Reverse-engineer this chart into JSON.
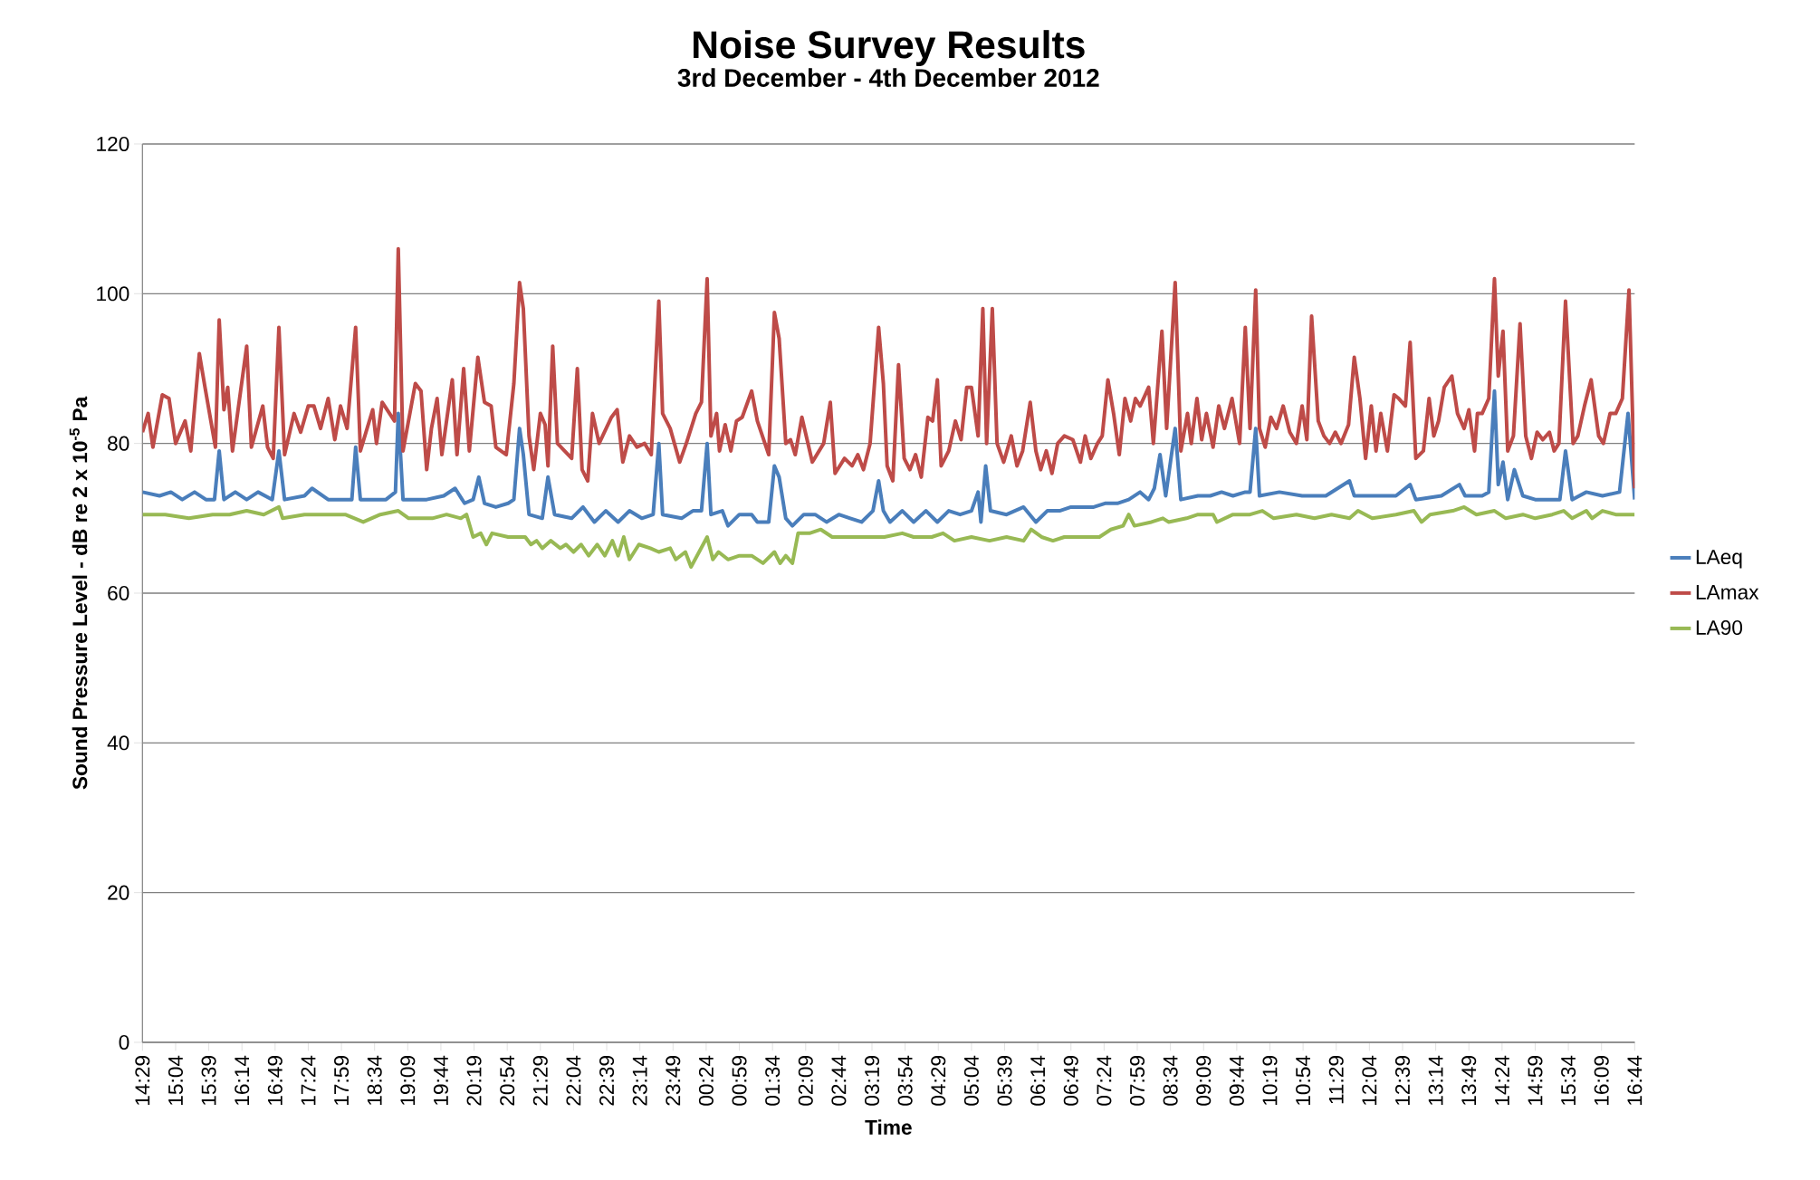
{
  "chart_data": {
    "type": "line",
    "title": "Noise Survey Results",
    "subtitle": "3rd December - 4th December 2012",
    "xlabel": "Time",
    "ylabel": "Sound Pressure Level - dB re 2 x 10$^{-5}$ Pa",
    "ylim": [
      0,
      120
    ],
    "yticks": [
      0,
      20,
      40,
      60,
      80,
      100,
      120
    ],
    "grid": "y",
    "legend": "right",
    "marker": "none",
    "line_style": "solid",
    "xlim": [
      "2012-12-03T14:29",
      "2012-12-04T16:44"
    ],
    "xticks": [
      {
        "value": "2012-12-03T14:29",
        "label": "14:29"
      },
      {
        "value": "2012-12-03T15:04",
        "label": "15:04"
      },
      {
        "value": "2012-12-03T15:39",
        "label": "15:39"
      },
      {
        "value": "2012-12-03T16:14",
        "label": "16:14"
      },
      {
        "value": "2012-12-03T16:49",
        "label": "16:49"
      },
      {
        "value": "2012-12-03T17:24",
        "label": "17:24"
      },
      {
        "value": "2012-12-03T17:59",
        "label": "17:59"
      },
      {
        "value": "2012-12-03T18:34",
        "label": "18:34"
      },
      {
        "value": "2012-12-03T19:09",
        "label": "19:09"
      },
      {
        "value": "2012-12-03T19:44",
        "label": "19:44"
      },
      {
        "value": "2012-12-03T20:19",
        "label": "20:19"
      },
      {
        "value": "2012-12-03T20:54",
        "label": "20:54"
      },
      {
        "value": "2012-12-03T21:29",
        "label": "21:29"
      },
      {
        "value": "2012-12-03T22:04",
        "label": "22:04"
      },
      {
        "value": "2012-12-03T22:39",
        "label": "22:39"
      },
      {
        "value": "2012-12-03T23:14",
        "label": "23:14"
      },
      {
        "value": "2012-12-03T23:49",
        "label": "23:49"
      },
      {
        "value": "2012-12-04T00:24",
        "label": "00:24"
      },
      {
        "value": "2012-12-04T00:59",
        "label": "00:59"
      },
      {
        "value": "2012-12-04T01:34",
        "label": "01:34"
      },
      {
        "value": "2012-12-04T02:09",
        "label": "02:09"
      },
      {
        "value": "2012-12-04T02:44",
        "label": "02:44"
      },
      {
        "value": "2012-12-04T03:19",
        "label": "03:19"
      },
      {
        "value": "2012-12-04T03:54",
        "label": "03:54"
      },
      {
        "value": "2012-12-04T04:29",
        "label": "04:29"
      },
      {
        "value": "2012-12-04T05:04",
        "label": "05:04"
      },
      {
        "value": "2012-12-04T05:39",
        "label": "05:39"
      },
      {
        "value": "2012-12-04T06:14",
        "label": "06:14"
      },
      {
        "value": "2012-12-04T06:49",
        "label": "06:49"
      },
      {
        "value": "2012-12-04T07:24",
        "label": "07:24"
      },
      {
        "value": "2012-12-04T07:59",
        "label": "07:59"
      },
      {
        "value": "2012-12-04T08:34",
        "label": "08:34"
      },
      {
        "value": "2012-12-04T09:09",
        "label": "09:09"
      },
      {
        "value": "2012-12-04T09:44",
        "label": "09:44"
      },
      {
        "value": "2012-12-04T10:19",
        "label": "10:19"
      },
      {
        "value": "2012-12-04T10:54",
        "label": "10:54"
      },
      {
        "value": "2012-12-04T11:29",
        "label": "11:29"
      },
      {
        "value": "2012-12-04T12:04",
        "label": "12:04"
      },
      {
        "value": "2012-12-04T12:39",
        "label": "12:39"
      },
      {
        "value": "2012-12-04T13:14",
        "label": "13:14"
      },
      {
        "value": "2012-12-04T13:49",
        "label": "13:49"
      },
      {
        "value": "2012-12-04T14:24",
        "label": "14:24"
      },
      {
        "value": "2012-12-04T14:59",
        "label": "14:59"
      },
      {
        "value": "2012-12-04T15:34",
        "label": "15:34"
      },
      {
        "value": "2012-12-04T16:09",
        "label": "16:09"
      },
      {
        "value": "2012-12-04T16:44",
        "label": "16:44"
      }
    ],
    "series": [
      {
        "name": "LAeq",
        "color": "#4a7ebb",
        "x": [
          "2012-12-03T14:29",
          "2012-12-03T14:47",
          "2012-12-03T14:59",
          "2012-12-03T15:11",
          "2012-12-03T15:24",
          "2012-12-03T15:36",
          "2012-12-03T15:45",
          "2012-12-03T15:50",
          "2012-12-03T15:55",
          "2012-12-03T16:07",
          "2012-12-03T16:19",
          "2012-12-03T16:31",
          "2012-12-03T16:46",
          "2012-12-03T16:53",
          "2012-12-03T16:59",
          "2012-12-03T17:20",
          "2012-12-03T17:28",
          "2012-12-03T17:45",
          "2012-12-03T18:03",
          "2012-12-03T18:10",
          "2012-12-03T18:14",
          "2012-12-03T18:19",
          "2012-12-03T18:46",
          "2012-12-03T18:56",
          "2012-12-03T18:59",
          "2012-12-03T19:04",
          "2012-12-03T19:29",
          "2012-12-03T19:47",
          "2012-12-03T19:59",
          "2012-12-03T20:09",
          "2012-12-03T20:18",
          "2012-12-03T20:24",
          "2012-12-03T20:30",
          "2012-12-03T20:42",
          "2012-12-03T20:55",
          "2012-12-03T21:01",
          "2012-12-03T21:07",
          "2012-12-03T21:11",
          "2012-12-03T21:17",
          "2012-12-03T21:31",
          "2012-12-03T21:37",
          "2012-12-03T21:44",
          "2012-12-03T22:02",
          "2012-12-03T22:14",
          "2012-12-03T22:26",
          "2012-12-03T22:38",
          "2012-12-03T22:51",
          "2012-12-03T23:03",
          "2012-12-03T23:16",
          "2012-12-03T23:28",
          "2012-12-03T23:34",
          "2012-12-03T23:38",
          "2012-12-03T23:58",
          "2012-12-04T00:10",
          "2012-12-04T00:19",
          "2012-12-04T00:25",
          "2012-12-04T00:29",
          "2012-12-04T00:41",
          "2012-12-04T00:47",
          "2012-12-04T00:59",
          "2012-12-04T01:12",
          "2012-12-04T01:18",
          "2012-12-04T01:30",
          "2012-12-04T01:36",
          "2012-12-04T01:41",
          "2012-12-04T01:48",
          "2012-12-04T01:55",
          "2012-12-04T02:07",
          "2012-12-04T02:19",
          "2012-12-04T02:31",
          "2012-12-04T02:44",
          "2012-12-04T02:56",
          "2012-12-04T03:08",
          "2012-12-04T03:20",
          "2012-12-04T03:26",
          "2012-12-04T03:31",
          "2012-12-04T03:38",
          "2012-12-04T03:51",
          "2012-12-04T04:03",
          "2012-12-04T04:16",
          "2012-12-04T04:28",
          "2012-12-04T04:40",
          "2012-12-04T04:52",
          "2012-12-04T05:04",
          "2012-12-04T05:11",
          "2012-12-04T05:14",
          "2012-12-04T05:19",
          "2012-12-04T05:24",
          "2012-12-04T05:41",
          "2012-12-04T05:59",
          "2012-12-04T06:12",
          "2012-12-04T06:24",
          "2012-12-04T06:37",
          "2012-12-04T06:49",
          "2012-12-04T07:01",
          "2012-12-04T07:13",
          "2012-12-04T07:25",
          "2012-12-04T07:38",
          "2012-12-04T07:50",
          "2012-12-04T08:02",
          "2012-12-04T08:11",
          "2012-12-04T08:17",
          "2012-12-04T08:23",
          "2012-12-04T08:29",
          "2012-12-04T08:39",
          "2012-12-04T08:45",
          "2012-12-04T09:03",
          "2012-12-04T09:16",
          "2012-12-04T09:28",
          "2012-12-04T09:40",
          "2012-12-04T09:53",
          "2012-12-04T09:58",
          "2012-12-04T10:04",
          "2012-12-04T10:08",
          "2012-12-04T10:29",
          "2012-12-04T10:53",
          "2012-12-04T11:18",
          "2012-12-04T11:43",
          "2012-12-04T11:48",
          "2012-12-04T12:07",
          "2012-12-04T12:32",
          "2012-12-04T12:47",
          "2012-12-04T12:53",
          "2012-12-04T13:20",
          "2012-12-04T13:39",
          "2012-12-04T13:45",
          "2012-12-04T14:03",
          "2012-12-04T14:10",
          "2012-12-04T14:16",
          "2012-12-04T14:20",
          "2012-12-04T14:25",
          "2012-12-04T14:30",
          "2012-12-04T14:37",
          "2012-12-04T14:46",
          "2012-12-04T14:59",
          "2012-12-04T15:17",
          "2012-12-04T15:25",
          "2012-12-04T15:31",
          "2012-12-04T15:38",
          "2012-12-04T15:53",
          "2012-12-04T16:10",
          "2012-12-04T16:28",
          "2012-12-04T16:37",
          "2012-12-04T16:44"
        ],
        "values": [
          73.5,
          73,
          73.5,
          72.5,
          73.5,
          72.5,
          72.5,
          79,
          72.5,
          73.5,
          72.5,
          73.5,
          72.5,
          79,
          72.5,
          73,
          74,
          72.5,
          72.5,
          72.5,
          79.5,
          72.5,
          72.5,
          73.5,
          84,
          72.5,
          72.5,
          73,
          74,
          72,
          72.5,
          75.5,
          72,
          71.5,
          72,
          72.5,
          82,
          78.5,
          70.5,
          70,
          75.5,
          70.5,
          70,
          71.5,
          69.5,
          71,
          69.5,
          71,
          70,
          70.5,
          80,
          70.5,
          70,
          71,
          71,
          80,
          70.5,
          71,
          69,
          70.5,
          70.5,
          69.5,
          69.5,
          77,
          75.5,
          70,
          69,
          70.5,
          70.5,
          69.5,
          70.5,
          70,
          69.5,
          71,
          75,
          71,
          69.5,
          71,
          69.5,
          71,
          69.5,
          71,
          70.5,
          71,
          73.5,
          69.5,
          77,
          71,
          70.5,
          71.5,
          69.5,
          71,
          71,
          71.5,
          71.5,
          71.5,
          72,
          72,
          72.5,
          73.5,
          72.5,
          74,
          78.5,
          73,
          82,
          72.5,
          73,
          73,
          73.5,
          73,
          73.5,
          73.5,
          82,
          73,
          73.5,
          73,
          73,
          75,
          73,
          73,
          73,
          74.5,
          72.5,
          73,
          74.5,
          73,
          73,
          73.5,
          87,
          74.5,
          77.5,
          72.5,
          76.5,
          73,
          72.5,
          72.5,
          72.5,
          79,
          72.5,
          73.5,
          73,
          73.5,
          84,
          72.5
        ]
      },
      {
        "name": "LAmax",
        "color": "#be4b48",
        "x": [
          "2012-12-03T14:29",
          "2012-12-03T14:35",
          "2012-12-03T14:40",
          "2012-12-03T14:50",
          "2012-12-03T14:57",
          "2012-12-03T15:04",
          "2012-12-03T15:14",
          "2012-12-03T15:20",
          "2012-12-03T15:29",
          "2012-12-03T15:35",
          "2012-12-03T15:46",
          "2012-12-03T15:50",
          "2012-12-03T15:55",
          "2012-12-03T15:59",
          "2012-12-03T16:04",
          "2012-12-03T16:19",
          "2012-12-03T16:24",
          "2012-12-03T16:36",
          "2012-12-03T16:41",
          "2012-12-03T16:47",
          "2012-12-03T16:53",
          "2012-12-03T16:59",
          "2012-12-03T17:09",
          "2012-12-03T17:16",
          "2012-12-03T17:24",
          "2012-12-03T17:30",
          "2012-12-03T17:37",
          "2012-12-03T17:45",
          "2012-12-03T17:52",
          "2012-12-03T17:58",
          "2012-12-03T18:05",
          "2012-12-03T18:14",
          "2012-12-03T18:19",
          "2012-12-03T18:32",
          "2012-12-03T18:36",
          "2012-12-03T18:42",
          "2012-12-03T18:55",
          "2012-12-03T18:59",
          "2012-12-03T19:04",
          "2012-12-03T19:17",
          "2012-12-03T19:23",
          "2012-12-03T19:29",
          "2012-12-03T19:34",
          "2012-12-03T19:40",
          "2012-12-03T19:45",
          "2012-12-03T19:56",
          "2012-12-03T20:01",
          "2012-12-03T20:08",
          "2012-12-03T20:14",
          "2012-12-03T20:23",
          "2012-12-03T20:30",
          "2012-12-03T20:37",
          "2012-12-03T20:42",
          "2012-12-03T20:53",
          "2012-12-03T21:01",
          "2012-12-03T21:07",
          "2012-12-03T21:11",
          "2012-12-03T21:17",
          "2012-12-03T21:22",
          "2012-12-03T21:29",
          "2012-12-03T21:34",
          "2012-12-03T21:37",
          "2012-12-03T21:42",
          "2012-12-03T21:47",
          "2012-12-03T22:02",
          "2012-12-03T22:08",
          "2012-12-03T22:13",
          "2012-12-03T22:19",
          "2012-12-03T22:24",
          "2012-12-03T22:31",
          "2012-12-03T22:44",
          "2012-12-03T22:50",
          "2012-12-03T22:56",
          "2012-12-03T23:03",
          "2012-12-03T23:11",
          "2012-12-03T23:19",
          "2012-12-03T23:26",
          "2012-12-03T23:34",
          "2012-12-03T23:38",
          "2012-12-03T23:46",
          "2012-12-03T23:56",
          "2012-12-04T00:03",
          "2012-12-04T00:13",
          "2012-12-04T00:19",
          "2012-12-04T00:25",
          "2012-12-04T00:29",
          "2012-12-04T00:35",
          "2012-12-04T00:38",
          "2012-12-04T00:44",
          "2012-12-04T00:50",
          "2012-12-04T00:56",
          "2012-12-04T01:02",
          "2012-12-04T01:12",
          "2012-12-04T01:18",
          "2012-12-04T01:30",
          "2012-12-04T01:36",
          "2012-12-04T01:41",
          "2012-12-04T01:48",
          "2012-12-04T01:53",
          "2012-12-04T01:58",
          "2012-12-04T02:05",
          "2012-12-04T02:16",
          "2012-12-04T02:28",
          "2012-12-04T02:35",
          "2012-12-04T02:40",
          "2012-12-04T02:50",
          "2012-12-04T02:58",
          "2012-12-04T03:04",
          "2012-12-04T03:10",
          "2012-12-04T03:17",
          "2012-12-04T03:26",
          "2012-12-04T03:31",
          "2012-12-04T03:35",
          "2012-12-04T03:41",
          "2012-12-04T03:47",
          "2012-12-04T03:53",
          "2012-12-04T03:59",
          "2012-12-04T04:05",
          "2012-12-04T04:11",
          "2012-12-04T04:18",
          "2012-12-04T04:23",
          "2012-12-04T04:28",
          "2012-12-04T04:32",
          "2012-12-04T04:40",
          "2012-12-04T04:47",
          "2012-12-04T04:53",
          "2012-12-04T04:59",
          "2012-12-04T05:04",
          "2012-12-04T05:11",
          "2012-12-04T05:16",
          "2012-12-04T05:20",
          "2012-12-04T05:26",
          "2012-12-04T05:31",
          "2012-12-04T05:38",
          "2012-12-04T05:46",
          "2012-12-04T05:52",
          "2012-12-04T05:58",
          "2012-12-04T06:06",
          "2012-12-04T06:12",
          "2012-12-04T06:17",
          "2012-12-04T06:23",
          "2012-12-04T06:29",
          "2012-12-04T06:35",
          "2012-12-04T06:42",
          "2012-12-04T06:51",
          "2012-12-04T06:59",
          "2012-12-04T07:04",
          "2012-12-04T07:10",
          "2012-12-04T07:17",
          "2012-12-04T07:22",
          "2012-12-04T07:28",
          "2012-12-04T07:34",
          "2012-12-04T07:40",
          "2012-12-04T07:46",
          "2012-12-04T07:52",
          "2012-12-04T07:57",
          "2012-12-04T08:02",
          "2012-12-04T08:11",
          "2012-12-04T08:16",
          "2012-12-04T08:25",
          "2012-12-04T08:30",
          "2012-12-04T08:39",
          "2012-12-04T08:45",
          "2012-12-04T08:52",
          "2012-12-04T08:56",
          "2012-12-04T09:02",
          "2012-12-04T09:07",
          "2012-12-04T09:12",
          "2012-12-04T09:19",
          "2012-12-04T09:25",
          "2012-12-04T09:31",
          "2012-12-04T09:39",
          "2012-12-04T09:47",
          "2012-12-04T09:53",
          "2012-12-04T09:58",
          "2012-12-04T10:04",
          "2012-12-04T10:08",
          "2012-12-04T10:14",
          "2012-12-04T10:20",
          "2012-12-04T10:26",
          "2012-12-04T10:33",
          "2012-12-04T10:40",
          "2012-12-04T10:47",
          "2012-12-04T10:53",
          "2012-12-04T10:58",
          "2012-12-04T11:03",
          "2012-12-04T11:10",
          "2012-12-04T11:16",
          "2012-12-04T11:22",
          "2012-12-04T11:28",
          "2012-12-04T11:34",
          "2012-12-04T11:42",
          "2012-12-04T11:48",
          "2012-12-04T11:54",
          "2012-12-04T12:00",
          "2012-12-04T12:06",
          "2012-12-04T12:11",
          "2012-12-04T12:16",
          "2012-12-04T12:23",
          "2012-12-04T12:30",
          "2012-12-04T12:35",
          "2012-12-04T12:42",
          "2012-12-04T12:47",
          "2012-12-04T12:53",
          "2012-12-04T13:01",
          "2012-12-04T13:07",
          "2012-12-04T13:12",
          "2012-12-04T13:17",
          "2012-12-04T13:23",
          "2012-12-04T13:31",
          "2012-12-04T13:37",
          "2012-12-04T13:44",
          "2012-12-04T13:49",
          "2012-12-04T13:55",
          "2012-12-04T13:58",
          "2012-12-04T14:03",
          "2012-12-04T14:10",
          "2012-12-04T14:16",
          "2012-12-04T14:20",
          "2012-12-04T14:25",
          "2012-12-04T14:30",
          "2012-12-04T14:36",
          "2012-12-04T14:43",
          "2012-12-04T14:49",
          "2012-12-04T14:55",
          "2012-12-04T15:01",
          "2012-12-04T15:07",
          "2012-12-04T15:14",
          "2012-12-04T15:19",
          "2012-12-04T15:24",
          "2012-12-04T15:31",
          "2012-12-04T15:39",
          "2012-12-04T15:44",
          "2012-12-04T15:51",
          "2012-12-04T15:58",
          "2012-12-04T16:06",
          "2012-12-04T16:11",
          "2012-12-04T16:18",
          "2012-12-04T16:24",
          "2012-12-04T16:31",
          "2012-12-04T16:38",
          "2012-12-04T16:44"
        ],
        "values": [
          81.5,
          84,
          79.5,
          86.5,
          86,
          80,
          83,
          79,
          92,
          87.5,
          79.5,
          96.5,
          84.5,
          87.5,
          79,
          93,
          79.5,
          85,
          79.5,
          78,
          95.5,
          78.5,
          84,
          81.5,
          85,
          85,
          82,
          86,
          80.5,
          85,
          82,
          95.5,
          79,
          84.5,
          80,
          85.5,
          83,
          106,
          79,
          88,
          87,
          76.5,
          82,
          86,
          78.5,
          88.5,
          78.5,
          90,
          79,
          91.5,
          85.5,
          85,
          79.5,
          78.5,
          88,
          101.5,
          98,
          81,
          76.5,
          84,
          82.5,
          77,
          93,
          80,
          78,
          90,
          76.5,
          75,
          84,
          80,
          83.5,
          84.5,
          77.5,
          81,
          79.5,
          80,
          78.5,
          99,
          84,
          82,
          77.5,
          80,
          84,
          85.5,
          102,
          81,
          84,
          79,
          82.5,
          79,
          83,
          83.5,
          87,
          83,
          78.5,
          97.5,
          94,
          80,
          80.5,
          78.5,
          83.5,
          77.5,
          80,
          85.5,
          76,
          78,
          77,
          78.5,
          76.5,
          80,
          95.5,
          88,
          77,
          75,
          90.5,
          78,
          76.5,
          78.5,
          75.5,
          83.5,
          83,
          88.5,
          77,
          79,
          83,
          80.5,
          87.5,
          87.5,
          81,
          98,
          80,
          98,
          80,
          77.5,
          81,
          77,
          79,
          85.5,
          79,
          76.5,
          79,
          76,
          80,
          81,
          80.5,
          77.5,
          81,
          78,
          80,
          81,
          88.5,
          84,
          78.5,
          86,
          83,
          86,
          85,
          87.5,
          80,
          95,
          82,
          101.5,
          79,
          84,
          80,
          86,
          80.5,
          84,
          79.5,
          85,
          82,
          86,
          80,
          95.5,
          82,
          100.5,
          82,
          79.5,
          83.5,
          82,
          85,
          81.5,
          80,
          85,
          80.5,
          97,
          83,
          81,
          80,
          81.5,
          80,
          82.5,
          91.5,
          86,
          78,
          85,
          79,
          84,
          79,
          86.5,
          86,
          85,
          93.5,
          78,
          79,
          86,
          81,
          83,
          87.5,
          89,
          84,
          82,
          84.5,
          79,
          84,
          84,
          86,
          102,
          89,
          95,
          79,
          81,
          96,
          81,
          78,
          81.5,
          80.5,
          81.5,
          79,
          80,
          99,
          80,
          81,
          85,
          88.5,
          81,
          80,
          84,
          84,
          86,
          100.5,
          74
        ]
      },
      {
        "name": "LA90",
        "color": "#98b954",
        "x": [
          "2012-12-03T14:29",
          "2012-12-03T14:53",
          "2012-12-03T15:18",
          "2012-12-03T15:43",
          "2012-12-03T16:01",
          "2012-12-03T16:19",
          "2012-12-03T16:37",
          "2012-12-03T16:53",
          "2012-12-03T16:57",
          "2012-12-03T17:20",
          "2012-12-03T17:45",
          "2012-12-03T18:03",
          "2012-12-03T18:22",
          "2012-12-03T18:40",
          "2012-12-03T18:59",
          "2012-12-03T19:10",
          "2012-12-03T19:35",
          "2012-12-03T19:50",
          "2012-12-03T20:05",
          "2012-12-03T20:11",
          "2012-12-03T20:18",
          "2012-12-03T20:26",
          "2012-12-03T20:32",
          "2012-12-03T20:38",
          "2012-12-03T20:55",
          "2012-12-03T21:13",
          "2012-12-03T21:19",
          "2012-12-03T21:25",
          "2012-12-03T21:31",
          "2012-12-03T21:40",
          "2012-12-03T21:50",
          "2012-12-03T21:56",
          "2012-12-03T22:04",
          "2012-12-03T22:12",
          "2012-12-03T22:20",
          "2012-12-03T22:29",
          "2012-12-03T22:37",
          "2012-12-03T22:45",
          "2012-12-03T22:51",
          "2012-12-03T22:57",
          "2012-12-03T23:03",
          "2012-12-03T23:13",
          "2012-12-03T23:25",
          "2012-12-03T23:34",
          "2012-12-03T23:46",
          "2012-12-03T23:52",
          "2012-12-04T00:02",
          "2012-12-04T00:08",
          "2012-12-04T00:25",
          "2012-12-04T00:31",
          "2012-12-04T00:37",
          "2012-12-04T00:47",
          "2012-12-04T00:59",
          "2012-12-04T01:12",
          "2012-12-04T01:24",
          "2012-12-04T01:36",
          "2012-12-04T01:42",
          "2012-12-04T01:48",
          "2012-12-04T01:55",
          "2012-12-04T02:01",
          "2012-12-04T02:13",
          "2012-12-04T02:25",
          "2012-12-04T02:37",
          "2012-12-04T02:56",
          "2012-12-04T03:14",
          "2012-12-04T03:32",
          "2012-12-04T03:51",
          "2012-12-04T04:03",
          "2012-12-04T04:22",
          "2012-12-04T04:34",
          "2012-12-04T04:46",
          "2012-12-04T05:04",
          "2012-12-04T05:23",
          "2012-12-04T05:41",
          "2012-12-04T05:59",
          "2012-12-04T06:07",
          "2012-12-04T06:18",
          "2012-12-04T06:30",
          "2012-12-04T06:42",
          "2012-12-04T07:01",
          "2012-12-04T07:19",
          "2012-12-04T07:31",
          "2012-12-04T07:44",
          "2012-12-04T07:50",
          "2012-12-04T07:56",
          "2012-12-04T08:14",
          "2012-12-04T08:26",
          "2012-12-04T08:32",
          "2012-12-04T08:51",
          "2012-12-04T09:03",
          "2012-12-04T09:19",
          "2012-12-04T09:23",
          "2012-12-04T09:40",
          "2012-12-04T09:58",
          "2012-12-04T10:11",
          "2012-12-04T10:23",
          "2012-12-04T10:47",
          "2012-12-04T11:06",
          "2012-12-04T11:24",
          "2012-12-04T11:43",
          "2012-12-04T11:52",
          "2012-12-04T12:07",
          "2012-12-04T12:32",
          "2012-12-04T12:51",
          "2012-12-04T12:59",
          "2012-12-04T13:08",
          "2012-12-04T13:32",
          "2012-12-04T13:44",
          "2012-12-04T13:57",
          "2012-12-04T14:16",
          "2012-12-04T14:28",
          "2012-12-04T14:46",
          "2012-12-04T14:59",
          "2012-12-04T15:17",
          "2012-12-04T15:29",
          "2012-12-04T15:38",
          "2012-12-04T15:53",
          "2012-12-04T15:59",
          "2012-12-04T16:10",
          "2012-12-04T16:24",
          "2012-12-04T16:44"
        ],
        "values": [
          70.5,
          70.5,
          70,
          70.5,
          70.5,
          71,
          70.5,
          71.5,
          70,
          70.5,
          70.5,
          70.5,
          69.5,
          70.5,
          71,
          70,
          70,
          70.5,
          70,
          70.5,
          67.5,
          68,
          66.5,
          68,
          67.5,
          67.5,
          66.5,
          67,
          66,
          67,
          66,
          66.5,
          65.5,
          66.5,
          65,
          66.5,
          65,
          67,
          65,
          67.5,
          64.5,
          66.5,
          66,
          65.5,
          66,
          64.5,
          65.5,
          63.5,
          67.5,
          64.5,
          65.5,
          64.5,
          65,
          65,
          64,
          65.5,
          64,
          65,
          64,
          68,
          68,
          68.5,
          67.5,
          67.5,
          67.5,
          67.5,
          68,
          67.5,
          67.5,
          68,
          67,
          67.5,
          67,
          67.5,
          67,
          68.5,
          67.5,
          67,
          67.5,
          67.5,
          67.5,
          68.5,
          69,
          70.5,
          69,
          69.5,
          70,
          69.5,
          70,
          70.5,
          70.5,
          69.5,
          70.5,
          70.5,
          71,
          70,
          70.5,
          70,
          70.5,
          70,
          71,
          70,
          70.5,
          71,
          69.5,
          70.5,
          71,
          71.5,
          70.5,
          71,
          70,
          70.5,
          70,
          70.5,
          71,
          70,
          71,
          70,
          71,
          70.5,
          70.5
        ]
      }
    ]
  }
}
